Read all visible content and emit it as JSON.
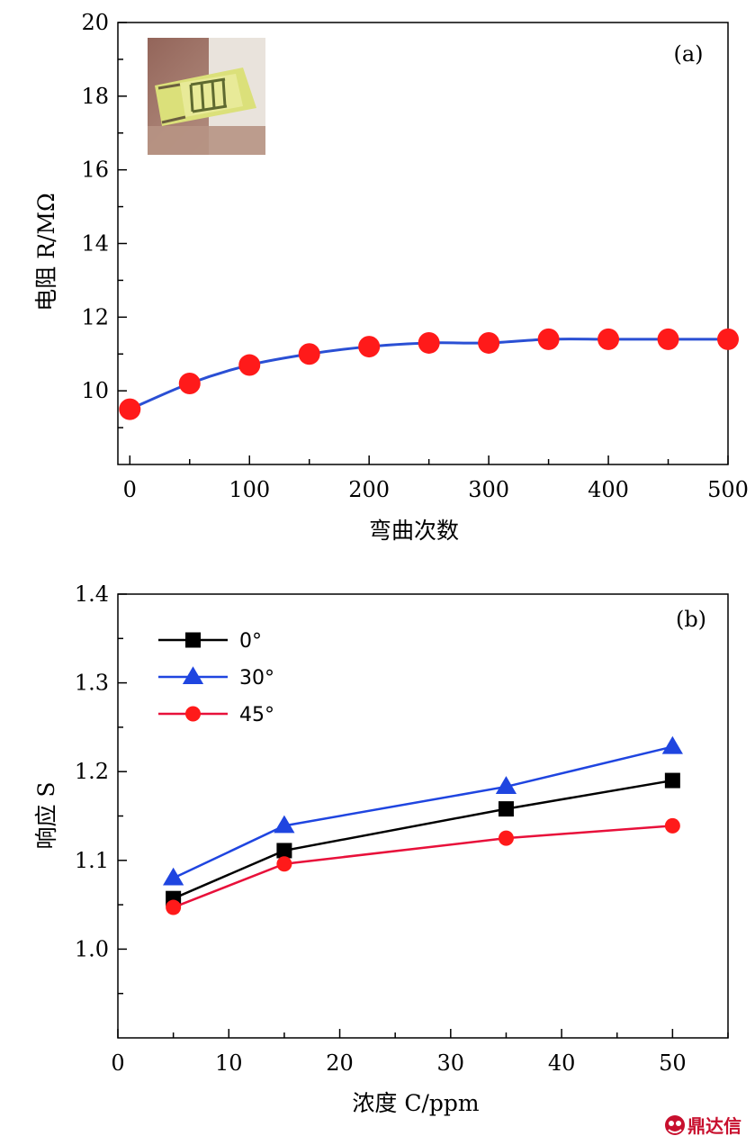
{
  "chart_data": [
    {
      "type": "line",
      "panel_label": "(a)",
      "xlabel": "弯曲次数",
      "ylabel": "电阻 R/MΩ",
      "xlim": [
        -10,
        500
      ],
      "ylim": [
        8,
        20
      ],
      "xticks": [
        "0",
        "100",
        "200",
        "300",
        "400",
        "500"
      ],
      "yticks": [
        "10",
        "12",
        "14",
        "16",
        "18",
        "20"
      ],
      "x": [
        0,
        50,
        100,
        150,
        200,
        250,
        300,
        350,
        400,
        450,
        500
      ],
      "series": [
        {
          "values": [
            9.5,
            10.2,
            10.7,
            11.0,
            11.2,
            11.3,
            11.3,
            11.4,
            11.4,
            11.4,
            11.4
          ],
          "line_color": "#2a4fd4",
          "marker_color": "#ff1a1a",
          "marker": "circle"
        }
      ],
      "inset": "photo-of-flexible-sensor"
    },
    {
      "type": "line",
      "panel_label": "(b)",
      "xlabel": "浓度 C/ppm",
      "ylabel": "响应 S",
      "xlim": [
        0,
        55
      ],
      "ylim": [
        0.9,
        1.4
      ],
      "xticks": [
        "0",
        "10",
        "20",
        "30",
        "40",
        "50"
      ],
      "yticks": [
        "1.0",
        "1.1",
        "1.2",
        "1.3",
        "1.4"
      ],
      "x": [
        5,
        15,
        35,
        50
      ],
      "legend_position": "top-left",
      "series": [
        {
          "name": "0°",
          "values": [
            1.057,
            1.111,
            1.158,
            1.19
          ],
          "color": "#000000",
          "marker": "square"
        },
        {
          "name": "30°",
          "values": [
            1.08,
            1.139,
            1.183,
            1.228
          ],
          "color": "#1f45e0",
          "marker": "triangle"
        },
        {
          "name": "45°",
          "values": [
            1.047,
            1.096,
            1.125,
            1.139
          ],
          "color": "#e8103a",
          "marker_color": "#ff1a1a",
          "marker": "circle"
        }
      ]
    }
  ],
  "watermark": {
    "text": "鼎达信",
    "icon": "logo-icon"
  }
}
